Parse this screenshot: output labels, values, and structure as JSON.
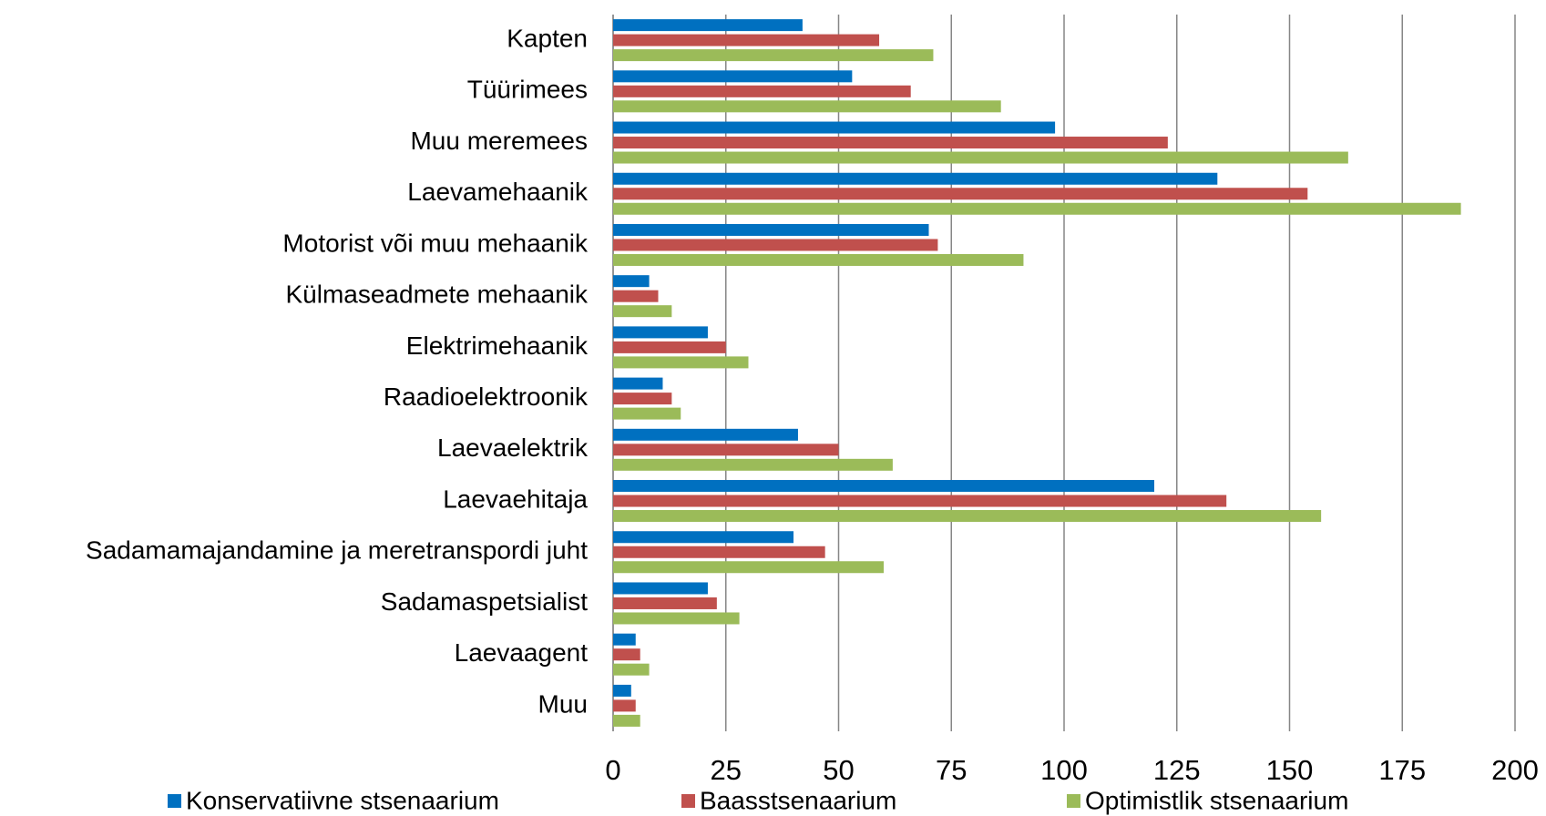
{
  "chart_data": {
    "type": "bar",
    "orientation": "horizontal",
    "categories": [
      "Kapten",
      "Tüürimees",
      "Muu meremees",
      "Laevamehaanik",
      "Motorist või muu mehaanik",
      "Külmaseadmete mehaanik",
      "Elektrimehaanik",
      "Raadioelektroonik",
      "Laevaelektrik",
      "Laevaehitaja",
      "Sadamamajandamine ja meretranspordi juht",
      "Sadamaspetsialist",
      "Laevaagent",
      "Muu"
    ],
    "series": [
      {
        "name": "Konservatiivne stsenaarium",
        "color": "#0070c0",
        "values": [
          42,
          53,
          98,
          134,
          70,
          8,
          21,
          11,
          41,
          120,
          40,
          21,
          5,
          4
        ]
      },
      {
        "name": "Baasstsenaarium",
        "color": "#c0504d",
        "values": [
          59,
          66,
          123,
          154,
          72,
          10,
          25,
          13,
          50,
          136,
          47,
          23,
          6,
          5
        ]
      },
      {
        "name": "Optimistlik stsenaarium",
        "color": "#9bbb59",
        "values": [
          71,
          86,
          163,
          188,
          91,
          13,
          30,
          15,
          62,
          157,
          60,
          28,
          8,
          6
        ]
      }
    ],
    "xlim": [
      0,
      200
    ],
    "xticks": [
      0,
      25,
      50,
      75,
      100,
      125,
      150,
      175,
      200
    ],
    "grid": true,
    "legend": "bottom"
  }
}
